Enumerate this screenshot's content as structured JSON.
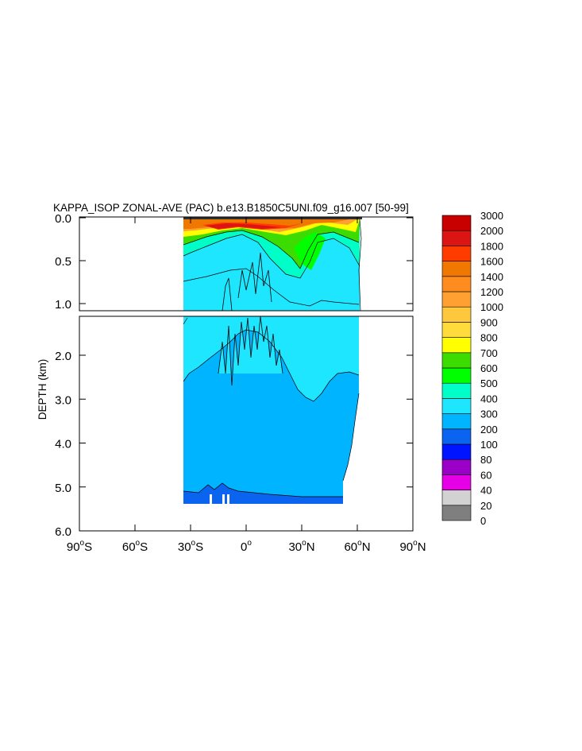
{
  "chart_data": {
    "type": "heatmap",
    "title": "KAPPA_ISOP ZONAL-AVE (PAC) b.e13.B1850C5UNI.f09_g16.007 [50-99]",
    "ylabel": "DEPTH (km)",
    "xlim": [
      -90,
      90
    ],
    "ylim": [
      0,
      6
    ],
    "x_ticks": [
      {
        "value": -90,
        "main": "90",
        "sup": "o",
        "hemi": "S"
      },
      {
        "value": -60,
        "main": "60",
        "sup": "o",
        "hemi": "S"
      },
      {
        "value": -30,
        "main": "30",
        "sup": "o",
        "hemi": "S"
      },
      {
        "value": 0,
        "main": "0",
        "sup": "o",
        "hemi": ""
      },
      {
        "value": 30,
        "main": "30",
        "sup": "o",
        "hemi": "N"
      },
      {
        "value": 60,
        "main": "60",
        "sup": "o",
        "hemi": "N"
      },
      {
        "value": 90,
        "main": "90",
        "sup": "o",
        "hemi": "N"
      }
    ],
    "y_ticks_upper": [
      "0.0",
      "0.5",
      "1.0"
    ],
    "y_ticks_lower": [
      "2.0",
      "3.0",
      "4.0",
      "5.0",
      "6.0"
    ],
    "levels": [
      "0",
      "20",
      "40",
      "60",
      "80",
      "100",
      "200",
      "300",
      "400",
      "500",
      "600",
      "700",
      "800",
      "900",
      "1000",
      "1200",
      "1400",
      "1600",
      "1800",
      "2000",
      "3000"
    ],
    "colors": [
      "#7f7f7f",
      "#d2d2d2",
      "#e600e6",
      "#9a00c8",
      "#0014ff",
      "#0a64f0",
      "#00b4ff",
      "#1ee6ff",
      "#00ffc8",
      "#00ff00",
      "#3cdc00",
      "#ffff00",
      "#ffdc3c",
      "#ffc83c",
      "#ffa032",
      "#ff8c1e",
      "#f07800",
      "#ff3c00",
      "#dc1414",
      "#c80000"
    ],
    "domain_lon": [
      -33,
      62
    ],
    "ocean_floor_km": 5.35
  }
}
